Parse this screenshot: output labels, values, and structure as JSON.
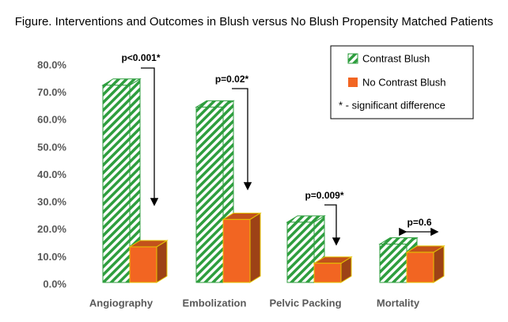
{
  "chart_data": {
    "type": "bar3d",
    "title": "Figure. Interventions and Outcomes in Blush versus No Blush Propensity Matched Patients",
    "categories": [
      "Angiography",
      "Embolization",
      "Pelvic Packing",
      "Mortality"
    ],
    "series": [
      {
        "name": "Contrast Blush",
        "color": "#2e9e3e",
        "values": [
          72,
          64,
          22,
          14
        ]
      },
      {
        "name": "No Contrast Blush",
        "color": "#f26522",
        "values": [
          13,
          23,
          7,
          11
        ]
      }
    ],
    "ylim": [
      0,
      80
    ],
    "yticks": [
      {
        "value": 0,
        "label": "0.0%"
      },
      {
        "value": 10,
        "label": "10.0%"
      },
      {
        "value": 20,
        "label": "20.0%"
      },
      {
        "value": 30,
        "label": "30.0%"
      },
      {
        "value": 40,
        "label": "40.0%"
      },
      {
        "value": 50,
        "label": "50.0%"
      },
      {
        "value": 60,
        "label": "60.0%"
      },
      {
        "value": 70,
        "label": "70.0%"
      },
      {
        "value": 80,
        "label": "80.0%"
      }
    ],
    "grid": false,
    "legend_note": "* - significant difference",
    "annotations": [
      "p<0.001*",
      "p=0.02*",
      "p=0.009*",
      "p=0.6"
    ]
  }
}
